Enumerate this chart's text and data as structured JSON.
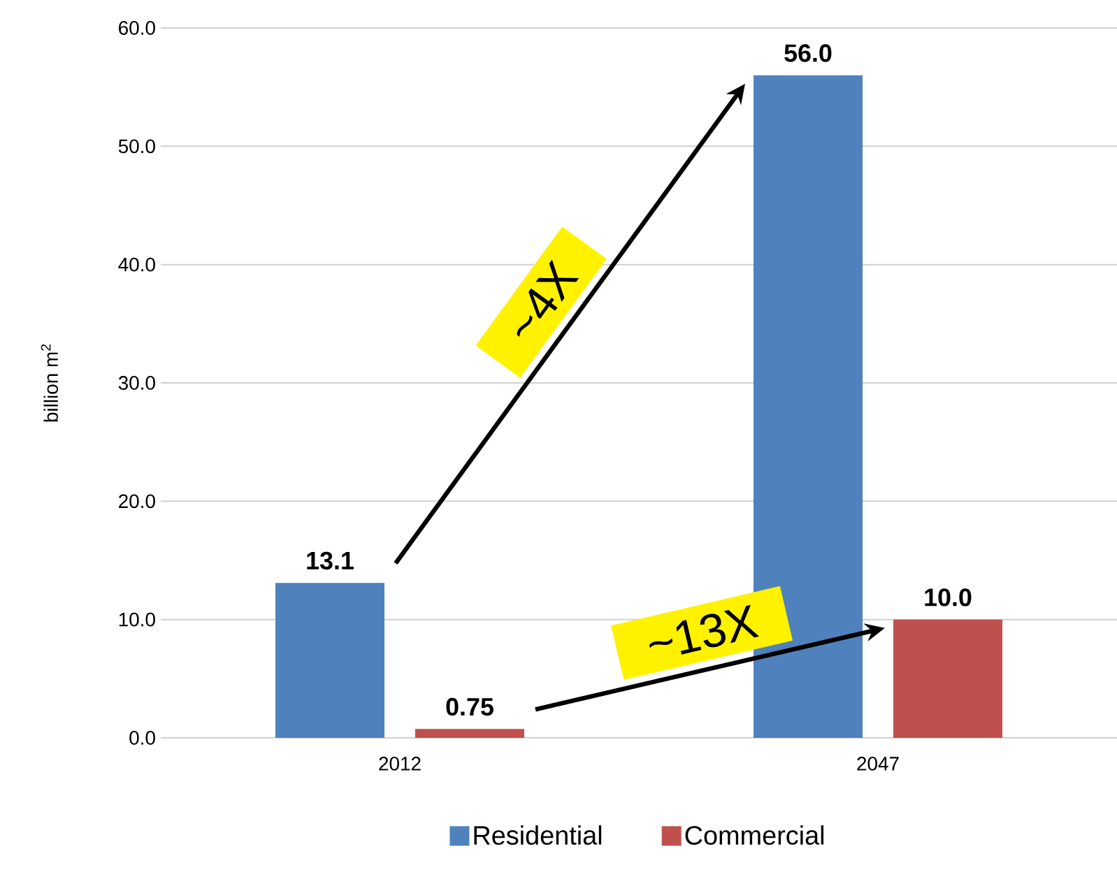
{
  "chart_data": {
    "type": "bar",
    "ylabel": "billion m$^{2}$",
    "categories": [
      "2012",
      "2047"
    ],
    "series": [
      {
        "name": "Residential",
        "color": "#4f81bd",
        "values": [
          13.1,
          56.0
        ],
        "value_labels": [
          "13.1",
          "56.0"
        ]
      },
      {
        "name": "Commercial",
        "color": "#c0504d",
        "values": [
          0.75,
          10.0
        ],
        "value_labels": [
          "0.75",
          "10.0"
        ]
      }
    ],
    "ylim": [
      0,
      60
    ],
    "yticks": [
      {
        "value": 0,
        "label": "0.0"
      },
      {
        "value": 10,
        "label": "10.0"
      },
      {
        "value": 20,
        "label": "20.0"
      },
      {
        "value": 30,
        "label": "30.0"
      },
      {
        "value": 40,
        "label": "40.0"
      },
      {
        "value": 50,
        "label": "50.0"
      },
      {
        "value": 60,
        "label": "60.0"
      }
    ],
    "grid": "y",
    "legend": "bottom",
    "annotations": [
      "~4X",
      "~13X"
    ]
  }
}
